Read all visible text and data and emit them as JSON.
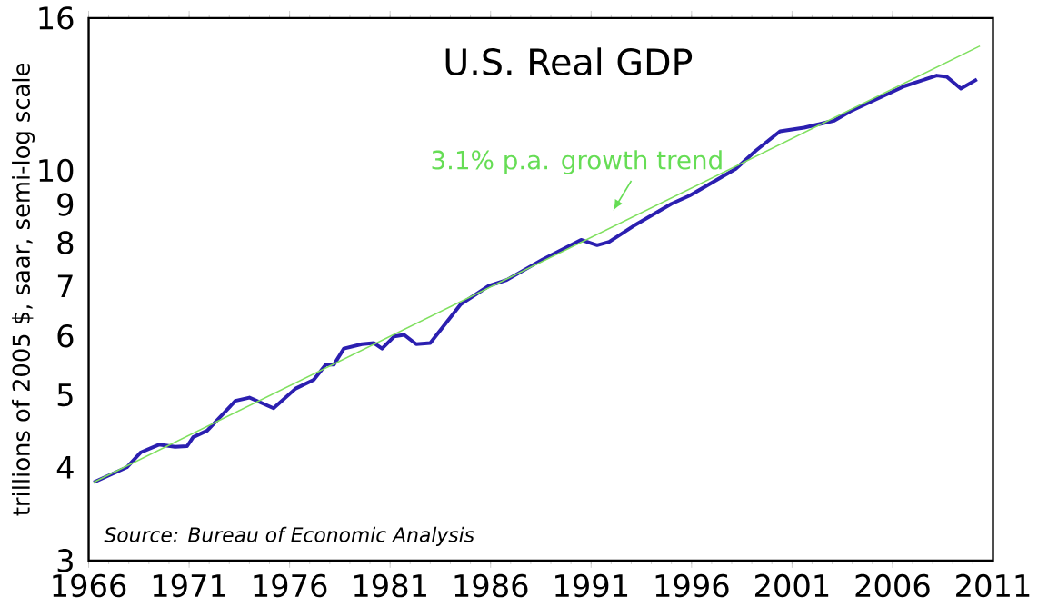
{
  "chart_data": {
    "type": "line",
    "title": "U.S. Real GDP",
    "ylabel": "trillions of 2005 $, saar, semi-log scale",
    "log": "y",
    "grid": false,
    "xlim": [
      1966,
      2011
    ],
    "xticks": [
      1966,
      1971,
      1976,
      1981,
      1986,
      1991,
      1996,
      2001,
      2006,
      2011
    ],
    "ylim": [
      3,
      16
    ],
    "yticks": [
      3,
      4,
      5,
      6,
      7,
      8,
      9,
      10,
      16
    ],
    "series": [
      {
        "color": "#2b1fb0",
        "x": [
          1966.25,
          1967.9,
          1968.6,
          1969.5,
          1970.3,
          1970.9,
          1971.2,
          1971.9,
          1973.3,
          1974.0,
          1975.2,
          1976.3,
          1977.2,
          1977.8,
          1978.2,
          1978.7,
          1979.6,
          1980.2,
          1980.6,
          1981.2,
          1981.7,
          1982.3,
          1983.0,
          1984.5,
          1985.9,
          1986.8,
          1988.6,
          1990.5,
          1991.3,
          1991.9,
          1993.1,
          1995.0,
          1995.9,
          1998.2,
          1999.2,
          2000.4,
          2001.6,
          2003.1,
          2003.9,
          2006.6,
          2008.2,
          2008.7,
          2009.4,
          2010.2
        ],
        "values": [
          3.82,
          4.0,
          4.19,
          4.29,
          4.26,
          4.27,
          4.39,
          4.48,
          4.91,
          4.96,
          4.8,
          5.1,
          5.24,
          5.49,
          5.49,
          5.77,
          5.85,
          5.87,
          5.77,
          5.99,
          6.02,
          5.85,
          5.87,
          6.61,
          7.0,
          7.13,
          7.6,
          8.07,
          7.94,
          8.02,
          8.42,
          9.02,
          9.25,
          10.05,
          10.63,
          11.28,
          11.41,
          11.66,
          12.0,
          12.97,
          13.4,
          13.35,
          12.87,
          13.24
        ]
      },
      {
        "color": "#80e060",
        "x": [
          1966.25,
          2010.35
        ],
        "values": [
          3.82,
          14.68
        ]
      }
    ],
    "annotations": [
      "3.1% p.a. growth trend",
      "*Source:  Bureau of Economic Analysis*"
    ]
  }
}
